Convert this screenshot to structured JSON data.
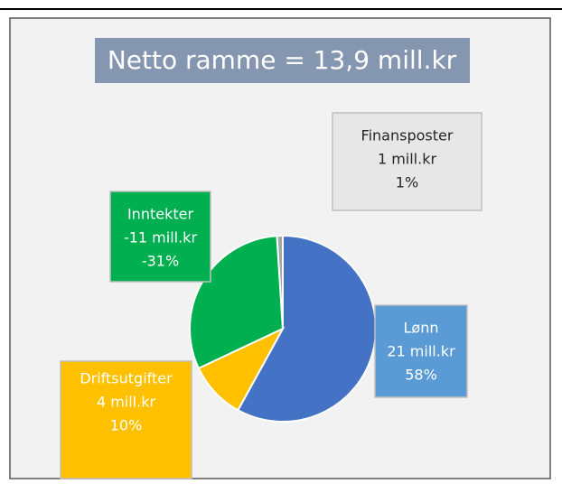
{
  "chart_data": {
    "type": "pie",
    "title": "Netto ramme = 13,9 mill.kr",
    "categories": [
      "Lønn",
      "Driftsutgifter",
      "Inntekter",
      "Finansposter"
    ],
    "values": [
      58,
      10,
      -31,
      1
    ],
    "value_labels": [
      "58%",
      "10%",
      "-31%",
      "1%"
    ],
    "amount_labels": [
      "21 mill.kr",
      "4 mill.kr",
      "-11 mill.kr",
      "1 mill.kr"
    ],
    "colors": [
      "#4472c4",
      "#ffc000",
      "#00b050",
      "#a5a5a5"
    ]
  }
}
